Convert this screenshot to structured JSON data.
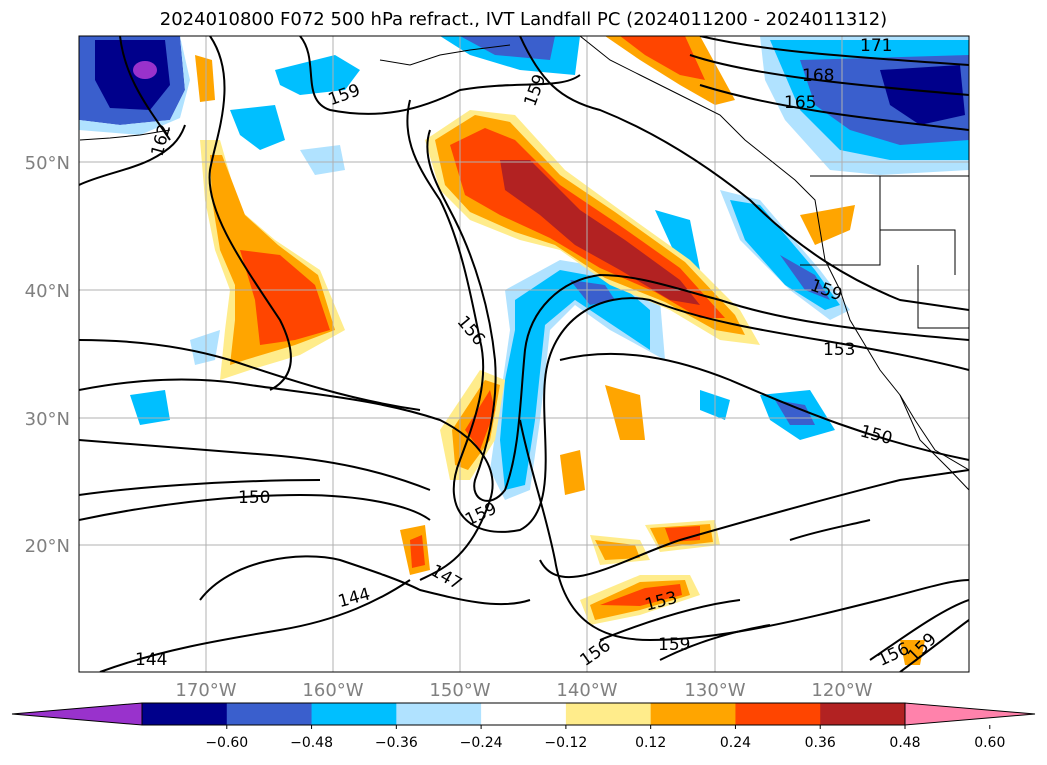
{
  "title": "2024010800 F072 500 hPa refract., IVT Landfall PC (2024011200 - 2024011312)",
  "map": {
    "lon_ticks": [
      "170°W",
      "160°W",
      "150°W",
      "140°W",
      "130°W",
      "120°W"
    ],
    "lat_ticks": [
      "50°N",
      "40°N",
      "30°N",
      "20°N"
    ],
    "contour_labels": [
      "171",
      "168",
      "165",
      "162",
      "159",
      "159",
      "159",
      "159",
      "156",
      "153",
      "150",
      "150",
      "147",
      "144",
      "144",
      "153",
      "159",
      "156",
      "156",
      "159"
    ],
    "contour_line_color": "#000000",
    "grid": true
  },
  "colorbar": {
    "colors": [
      "#9932cc",
      "#00008b",
      "#3a5fcd",
      "#00bfff",
      "#b0e2ff",
      "#ffffff",
      "#ffec8b",
      "#ffa500",
      "#ff4500",
      "#b22222",
      "#ff82ab"
    ],
    "tick_labels": [
      "−0.60",
      "−0.48",
      "−0.36",
      "−0.24",
      "−0.12",
      "0.12",
      "0.24",
      "0.36",
      "0.48",
      "0.60"
    ],
    "extend": "both"
  }
}
